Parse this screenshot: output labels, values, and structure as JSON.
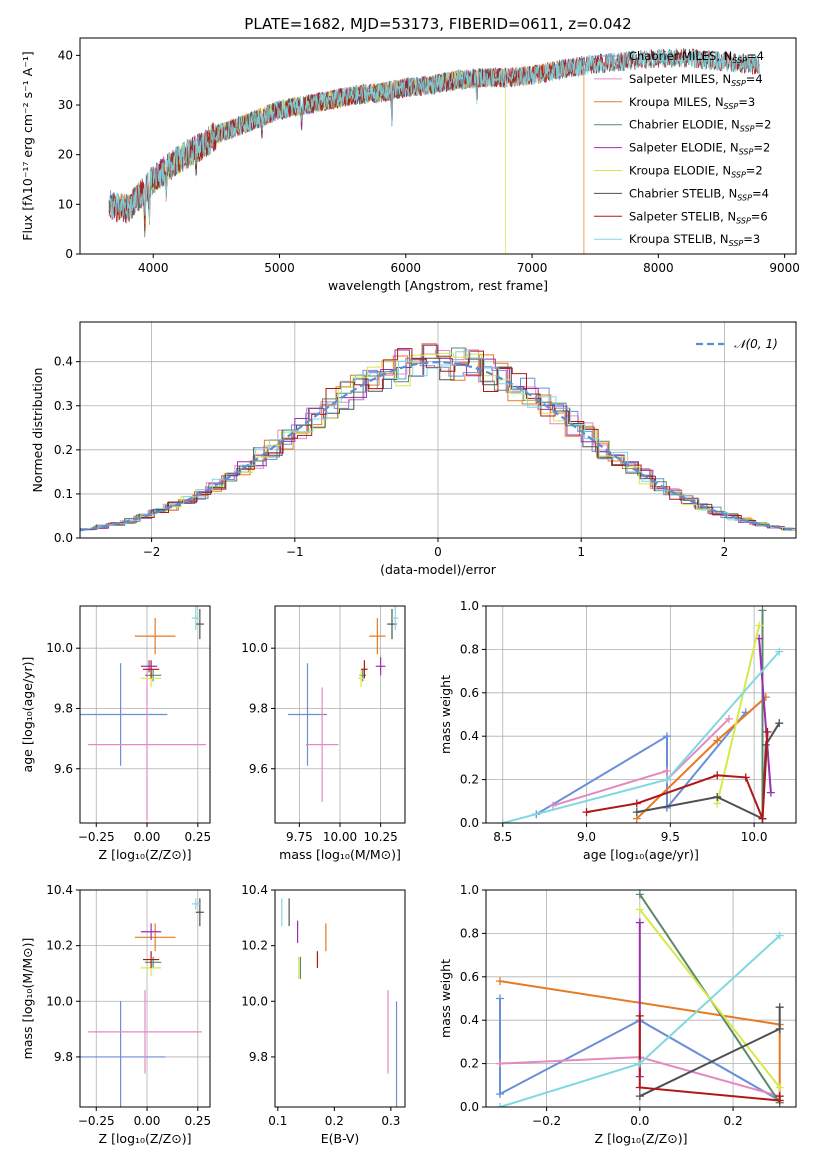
{
  "figure_title": "PLATE=1682, MJD=53173, FIBERID=0611, z=0.042",
  "colors": {
    "Chabrier MILES": "#6a8fd8",
    "Salpeter MILES": "#e48ac0",
    "Kroupa MILES": "#e57a22",
    "Chabrier ELODIE": "#5a8a6a",
    "Salpeter ELODIE": "#9a2fb0",
    "Kroupa ELODIE": "#d8e84a",
    "Chabrier STELIB": "#505050",
    "Salpeter STELIB": "#b01818",
    "Kroupa STELIB": "#80d8e0"
  },
  "chart_data": [
    {
      "id": "spectrum",
      "type": "line",
      "title": "PLATE=1682, MJD=53173, FIBERID=0611, z=0.042",
      "xlabel": "wavelength [Angstrom, rest frame]",
      "ylabel": "Flux [fλ10⁻¹⁷ erg cm⁻² s⁻¹ A⁻¹]",
      "xlim": [
        3420,
        9090
      ],
      "ylim": [
        0,
        43.5
      ],
      "xticks": [
        4000,
        5000,
        6000,
        7000,
        8000,
        9000
      ],
      "yticks": [
        0,
        10,
        20,
        30,
        40
      ],
      "legend_position": "top-right",
      "continuum_x": [
        3650,
        3700,
        3800,
        3900,
        4000,
        4100,
        4200,
        4300,
        4400,
        4500,
        4600,
        4800,
        5000,
        5200,
        5400,
        5600,
        5800,
        6000,
        6200,
        6400,
        6600,
        6800,
        7000,
        7200,
        7400,
        7600,
        7800,
        8000,
        8200,
        8400,
        8600,
        8800
      ],
      "continuum_y": [
        10,
        9.5,
        9,
        12,
        15,
        17,
        19,
        20.5,
        22,
        24,
        25,
        27,
        29,
        30,
        31,
        32,
        32.5,
        33.5,
        34,
        35,
        35.5,
        35.5,
        36,
        37,
        38,
        38.5,
        39,
        39.5,
        39.5,
        39,
        38.5,
        38
      ],
      "series": [
        {
          "name": "Chabrier MILES",
          "nssp": "4",
          "xmin": 3650,
          "xmax": 7410
        },
        {
          "name": "Salpeter MILES",
          "nssp": "4",
          "xmin": 3650,
          "xmax": 7410
        },
        {
          "name": "Kroupa MILES",
          "nssp": "3",
          "xmin": 3650,
          "xmax": 7410,
          "drop_at": 7410
        },
        {
          "name": "Chabrier ELODIE",
          "nssp": "2",
          "xmin": 3900,
          "xmax": 6790
        },
        {
          "name": "Salpeter ELODIE",
          "nssp": "2",
          "xmin": 3900,
          "xmax": 6790
        },
        {
          "name": "Kroupa ELODIE",
          "nssp": "2",
          "xmin": 3900,
          "xmax": 6790,
          "drop_at": 6790
        },
        {
          "name": "Chabrier STELIB",
          "nssp": "4",
          "xmin": 3650,
          "xmax": 8800
        },
        {
          "name": "Salpeter STELIB",
          "nssp": "6",
          "xmin": 3650,
          "xmax": 8800
        },
        {
          "name": "Kroupa STELIB",
          "nssp": "3",
          "xmin": 3650,
          "xmax": 8800
        }
      ]
    },
    {
      "id": "residuals",
      "type": "histogram",
      "xlabel": "(data-model)/error",
      "ylabel": "Normed distribution",
      "xlim": [
        -2.5,
        2.5
      ],
      "ylim": [
        0,
        0.49
      ],
      "xticks": [
        -2,
        -1,
        0,
        1,
        2
      ],
      "yticks": [
        0.0,
        0.1,
        0.2,
        0.3,
        0.4
      ],
      "grid": true,
      "reference_curve": {
        "label": "𝒩(0, 1)",
        "mean": 0,
        "sigma": 1,
        "color": "#5b8cd6"
      },
      "legend_position": "top-right",
      "bin_width": 0.1
    },
    {
      "id": "age_vs_Z",
      "type": "errorbar",
      "xlabel": "Z [log₁₀(Z/Z⊙)]",
      "ylabel": "age  [log₁₀(age/yr)]",
      "xlim": [
        -0.33,
        0.31
      ],
      "ylim": [
        9.42,
        10.14
      ],
      "xticks": [
        -0.25,
        0.0,
        0.25
      ],
      "yticks": [
        9.6,
        9.8,
        10.0
      ],
      "grid": true,
      "points": [
        {
          "series": "Chabrier MILES",
          "x": -0.13,
          "y": 9.78,
          "xerr": 0.23,
          "yerr": 0.17
        },
        {
          "series": "Salpeter MILES",
          "x": 0.0,
          "y": 9.68,
          "xerr": 0.29,
          "yerr": 0.25
        },
        {
          "series": "Kroupa MILES",
          "x": 0.04,
          "y": 10.04,
          "xerr": 0.1,
          "yerr": 0.06
        },
        {
          "series": "Chabrier ELODIE",
          "x": 0.03,
          "y": 9.91,
          "xerr": 0.04,
          "yerr": 0.02
        },
        {
          "series": "Salpeter ELODIE",
          "x": 0.01,
          "y": 9.94,
          "xerr": 0.04,
          "yerr": 0.02
        },
        {
          "series": "Kroupa ELODIE",
          "x": 0.02,
          "y": 9.9,
          "xerr": 0.05,
          "yerr": 0.03
        },
        {
          "series": "Chabrier STELIB",
          "x": 0.26,
          "y": 10.08,
          "xerr": 0.02,
          "yerr": 0.05
        },
        {
          "series": "Salpeter STELIB",
          "x": 0.02,
          "y": 9.93,
          "xerr": 0.04,
          "yerr": 0.03
        },
        {
          "series": "Kroupa STELIB",
          "x": 0.24,
          "y": 10.1,
          "xerr": 0.02,
          "yerr": 0.04
        }
      ]
    },
    {
      "id": "age_vs_mass",
      "type": "errorbar",
      "xlabel": "mass [log₁₀(M/M⊙)]",
      "ylabel": "",
      "xlim": [
        9.6,
        10.4
      ],
      "ylim": [
        9.42,
        10.14
      ],
      "xticks": [
        9.75,
        10.0,
        10.25
      ],
      "yticks": [
        9.6,
        9.8,
        10.0
      ],
      "grid": true,
      "points": [
        {
          "series": "Chabrier MILES",
          "x": 9.8,
          "y": 9.78,
          "xerr": 0.12,
          "yerr": 0.17
        },
        {
          "series": "Salpeter MILES",
          "x": 9.89,
          "y": 9.68,
          "xerr": 0.1,
          "yerr": 0.19
        },
        {
          "series": "Kroupa MILES",
          "x": 10.23,
          "y": 10.04,
          "xerr": 0.05,
          "yerr": 0.06
        },
        {
          "series": "Chabrier ELODIE",
          "x": 10.14,
          "y": 9.91,
          "xerr": 0.02,
          "yerr": 0.02
        },
        {
          "series": "Salpeter ELODIE",
          "x": 10.25,
          "y": 9.94,
          "xerr": 0.03,
          "yerr": 0.03
        },
        {
          "series": "Kroupa ELODIE",
          "x": 10.13,
          "y": 9.9,
          "xerr": 0.02,
          "yerr": 0.03
        },
        {
          "series": "Chabrier STELIB",
          "x": 10.32,
          "y": 10.08,
          "xerr": 0.03,
          "yerr": 0.05
        },
        {
          "series": "Salpeter STELIB",
          "x": 10.15,
          "y": 9.93,
          "xerr": 0.02,
          "yerr": 0.03
        },
        {
          "series": "Kroupa STELIB",
          "x": 10.34,
          "y": 10.1,
          "xerr": 0.02,
          "yerr": 0.04
        }
      ]
    },
    {
      "id": "massweight_vs_age",
      "type": "line",
      "xlabel": "age  [log₁₀(age/yr)]",
      "ylabel": "mass weight",
      "xlim": [
        8.4,
        10.25
      ],
      "ylim": [
        0.0,
        1.0
      ],
      "xticks": [
        8.5,
        9.0,
        9.5,
        10.0
      ],
      "yticks": [
        0.0,
        0.2,
        0.4,
        0.6,
        0.8,
        1.0
      ],
      "grid": true,
      "series": [
        {
          "name": "Chabrier MILES",
          "x": [
            8.7,
            9.48,
            9.48,
            9.95
          ],
          "y": [
            0.04,
            0.4,
            0.07,
            0.51
          ]
        },
        {
          "name": "Salpeter MILES",
          "x": [
            8.8,
            9.48,
            9.48,
            9.85
          ],
          "y": [
            0.08,
            0.24,
            0.2,
            0.48
          ]
        },
        {
          "name": "Kroupa MILES",
          "x": [
            9.3,
            9.78,
            10.07
          ],
          "y": [
            0.02,
            0.38,
            0.58
          ]
        },
        {
          "name": "Chabrier ELODIE",
          "x": [
            10.05,
            10.05
          ],
          "y": [
            0.98,
            0.02
          ]
        },
        {
          "name": "Salpeter ELODIE",
          "x": [
            10.03,
            10.1
          ],
          "y": [
            0.85,
            0.14
          ]
        },
        {
          "name": "Kroupa ELODIE",
          "x": [
            9.78,
            10.03
          ],
          "y": [
            0.09,
            0.91
          ]
        },
        {
          "name": "Chabrier STELIB",
          "x": [
            9.3,
            9.78,
            10.05,
            10.07,
            10.15
          ],
          "y": [
            0.05,
            0.12,
            0.02,
            0.36,
            0.46
          ]
        },
        {
          "name": "Salpeter STELIB",
          "x": [
            9.0,
            9.3,
            9.78,
            9.95,
            10.05,
            10.08
          ],
          "y": [
            0.05,
            0.09,
            0.22,
            0.21,
            0.02,
            0.42
          ]
        },
        {
          "name": "Kroupa STELIB",
          "x": [
            8.5,
            9.48,
            10.15
          ],
          "y": [
            0.0,
            0.2,
            0.79
          ]
        }
      ]
    },
    {
      "id": "mass_vs_Z",
      "type": "errorbar",
      "xlabel": "Z [log₁₀(Z/Z⊙)]",
      "ylabel": "mass [log₁₀(M/M⊙)]",
      "xlim": [
        -0.33,
        0.31
      ],
      "ylim": [
        9.62,
        10.4
      ],
      "xticks": [
        -0.25,
        0.0,
        0.25
      ],
      "yticks": [
        9.8,
        10.0,
        10.2,
        10.4
      ],
      "grid": true,
      "points": [
        {
          "series": "Chabrier MILES",
          "x": -0.13,
          "y": 9.8,
          "xerr": 0.22,
          "yerr": 0.2
        },
        {
          "series": "Salpeter MILES",
          "x": -0.01,
          "y": 9.89,
          "xerr": 0.28,
          "yerr": 0.15
        },
        {
          "series": "Kroupa MILES",
          "x": 0.04,
          "y": 10.23,
          "xerr": 0.1,
          "yerr": 0.05
        },
        {
          "series": "Chabrier ELODIE",
          "x": 0.03,
          "y": 10.14,
          "xerr": 0.04,
          "yerr": 0.02
        },
        {
          "series": "Salpeter ELODIE",
          "x": 0.02,
          "y": 10.25,
          "xerr": 0.05,
          "yerr": 0.03
        },
        {
          "series": "Kroupa ELODIE",
          "x": 0.02,
          "y": 10.12,
          "xerr": 0.05,
          "yerr": 0.03
        },
        {
          "series": "Chabrier STELIB",
          "x": 0.26,
          "y": 10.32,
          "xerr": 0.02,
          "yerr": 0.05
        },
        {
          "series": "Salpeter STELIB",
          "x": 0.02,
          "y": 10.15,
          "xerr": 0.04,
          "yerr": 0.03
        },
        {
          "series": "Kroupa STELIB",
          "x": 0.24,
          "y": 10.35,
          "xerr": 0.02,
          "yerr": 0.02
        }
      ]
    },
    {
      "id": "mass_vs_ebv",
      "type": "errorbar",
      "xlabel": "E(B-V)",
      "ylabel": "",
      "xlim": [
        0.095,
        0.325
      ],
      "ylim": [
        9.62,
        10.4
      ],
      "xticks": [
        0.1,
        0.2,
        0.3
      ],
      "yticks": [
        9.8,
        10.0,
        10.2,
        10.4
      ],
      "grid": false,
      "points": [
        {
          "series": "Chabrier MILES",
          "x": 0.31,
          "y": 9.8,
          "xerr": 0.0,
          "yerr": 0.2
        },
        {
          "series": "Salpeter MILES",
          "x": 0.295,
          "y": 9.89,
          "xerr": 0.0,
          "yerr": 0.15
        },
        {
          "series": "Kroupa MILES",
          "x": 0.185,
          "y": 10.23,
          "xerr": 0.0,
          "yerr": 0.05
        },
        {
          "series": "Chabrier ELODIE",
          "x": 0.14,
          "y": 10.12,
          "xerr": 0.0,
          "yerr": 0.04
        },
        {
          "series": "Salpeter ELODIE",
          "x": 0.135,
          "y": 10.25,
          "xerr": 0.0,
          "yerr": 0.04
        },
        {
          "series": "Kroupa ELODIE",
          "x": 0.137,
          "y": 10.12,
          "xerr": 0.0,
          "yerr": 0.04
        },
        {
          "series": "Chabrier STELIB",
          "x": 0.12,
          "y": 10.32,
          "xerr": 0.0,
          "yerr": 0.05
        },
        {
          "series": "Salpeter STELIB",
          "x": 0.17,
          "y": 10.15,
          "xerr": 0.0,
          "yerr": 0.03
        },
        {
          "series": "Kroupa STELIB",
          "x": 0.107,
          "y": 10.32,
          "xerr": 0.0,
          "yerr": 0.05
        }
      ]
    },
    {
      "id": "massweight_vs_Z",
      "type": "line",
      "xlabel": "Z [log₁₀(Z/Z⊙)]",
      "ylabel": "mass weight",
      "xlim": [
        -0.33,
        0.335
      ],
      "ylim": [
        0.0,
        1.0
      ],
      "xticks": [
        -0.2,
        0.0,
        0.2
      ],
      "yticks": [
        0.0,
        0.2,
        0.4,
        0.6,
        0.8,
        1.0
      ],
      "grid": true,
      "series": [
        {
          "name": "Chabrier MILES",
          "x": [
            -0.3,
            -0.3,
            0.0,
            0.3
          ],
          "y": [
            0.5,
            0.06,
            0.4,
            0.03
          ]
        },
        {
          "name": "Salpeter MILES",
          "x": [
            -0.3,
            0.0,
            0.3
          ],
          "y": [
            0.2,
            0.23,
            0.05
          ]
        },
        {
          "name": "Kroupa MILES",
          "x": [
            -0.3,
            0.3,
            0.3
          ],
          "y": [
            0.58,
            0.38,
            0.02
          ]
        },
        {
          "name": "Chabrier ELODIE",
          "x": [
            0.0,
            0.3
          ],
          "y": [
            0.98,
            0.02
          ]
        },
        {
          "name": "Salpeter ELODIE",
          "x": [
            0.0,
            0.0
          ],
          "y": [
            0.85,
            0.14
          ]
        },
        {
          "name": "Kroupa ELODIE",
          "x": [
            0.0,
            0.3
          ],
          "y": [
            0.91,
            0.09
          ]
        },
        {
          "name": "Chabrier STELIB",
          "x": [
            0.0,
            0.3,
            0.3
          ],
          "y": [
            0.05,
            0.36,
            0.46
          ]
        },
        {
          "name": "Salpeter STELIB",
          "x": [
            0.0,
            0.0,
            0.3,
            0.3
          ],
          "y": [
            0.42,
            0.09,
            0.03,
            0.05
          ]
        },
        {
          "name": "Kroupa STELIB",
          "x": [
            -0.3,
            0.0,
            0.3
          ],
          "y": [
            0.0,
            0.2,
            0.79
          ]
        }
      ]
    }
  ]
}
